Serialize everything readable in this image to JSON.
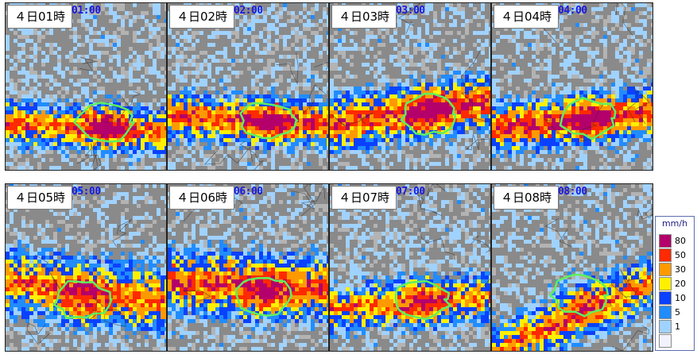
{
  "panels": [
    {
      "label": "４日01時",
      "timestamp": "01:00"
    },
    {
      "label": "４日02時",
      "timestamp": "02:00"
    },
    {
      "label": "４日03時",
      "timestamp": "03:00"
    },
    {
      "label": "４日04時",
      "timestamp": "04:00"
    },
    {
      "label": "４日05時",
      "timestamp": "05:00"
    },
    {
      "label": "４日06時",
      "timestamp": "06:00"
    },
    {
      "label": "４日07時",
      "timestamp": "07:00"
    },
    {
      "label": "４日08時",
      "timestamp": "08:00"
    }
  ],
  "legend": {
    "unit": "mm/h",
    "levels": [
      {
        "value": "80",
        "color": "#b4006a"
      },
      {
        "value": "50",
        "color": "#ff2a00"
      },
      {
        "value": "30",
        "color": "#ff9900"
      },
      {
        "value": "20",
        "color": "#fff000"
      },
      {
        "value": "10",
        "color": "#0a41ff"
      },
      {
        "value": "5",
        "color": "#218cff"
      },
      {
        "value": "1",
        "color": "#a0d2ff"
      },
      {
        "value": "",
        "color": "#f2f2ff"
      }
    ]
  }
}
